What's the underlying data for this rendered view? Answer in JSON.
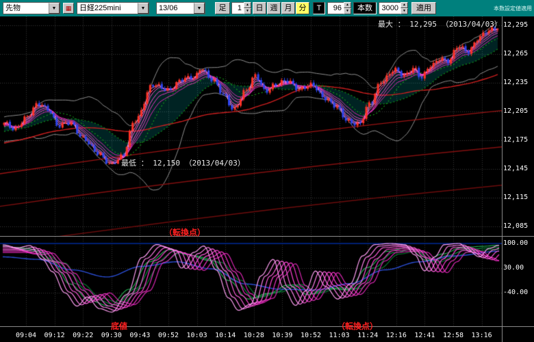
{
  "toolbar": {
    "category_value": "先物",
    "symbol_value": "日経225mini",
    "contract_value": "13/06",
    "bar_label": "足",
    "minute_value": "1",
    "period_buttons": [
      {
        "label": "日",
        "selected": false
      },
      {
        "label": "週",
        "selected": false
      },
      {
        "label": "月",
        "selected": false
      },
      {
        "label": "分",
        "selected": true
      }
    ],
    "tick_label": "T",
    "bars_value": "96",
    "count_label": "本数",
    "count_value": "3000",
    "apply_label": "適用",
    "corner_note": "本数設定値適用"
  },
  "annotations": {
    "max_label": "最大 ： 12,295 （2013/04/03）",
    "min_label": "最低 ： 12,150 （2013/04/03）",
    "turn_top": "（転換点）",
    "bottom": "底値",
    "turn_bottom": "（転換点）"
  },
  "chart_data": {
    "type": "candlestick",
    "symbol": "日経225mini",
    "contract_month": "13/06",
    "max_price": 12295,
    "min_price": 12150,
    "price_axis": {
      "labels": [
        "12,295",
        "12,265",
        "12,235",
        "12,205",
        "12,175",
        "12,145",
        "12,115",
        "12,085"
      ],
      "max": 12295,
      "min": 12085,
      "step": 30
    },
    "time_labels": [
      "09:04",
      "09:12",
      "09:22",
      "09:30",
      "09:43",
      "09:52",
      "10:03",
      "10:14",
      "10:28",
      "10:39",
      "10:52",
      "11:03",
      "11:24",
      "12:16",
      "12:41",
      "12:58",
      "13:16"
    ],
    "price_anchors": [
      [
        0,
        12192
      ],
      [
        0.02,
        12186
      ],
      [
        0.045,
        12200
      ],
      [
        0.07,
        12212
      ],
      [
        0.09,
        12208
      ],
      [
        0.11,
        12190
      ],
      [
        0.135,
        12192
      ],
      [
        0.16,
        12178
      ],
      [
        0.19,
        12160
      ],
      [
        0.215,
        12150
      ],
      [
        0.24,
        12158
      ],
      [
        0.265,
        12196
      ],
      [
        0.3,
        12232
      ],
      [
        0.33,
        12228
      ],
      [
        0.36,
        12238
      ],
      [
        0.385,
        12240
      ],
      [
        0.4,
        12252
      ],
      [
        0.42,
        12238
      ],
      [
        0.445,
        12222
      ],
      [
        0.465,
        12208
      ],
      [
        0.49,
        12226
      ],
      [
        0.51,
        12243
      ],
      [
        0.53,
        12227
      ],
      [
        0.55,
        12232
      ],
      [
        0.575,
        12238
      ],
      [
        0.6,
        12228
      ],
      [
        0.625,
        12232
      ],
      [
        0.65,
        12220
      ],
      [
        0.67,
        12210
      ],
      [
        0.695,
        12196
      ],
      [
        0.72,
        12192
      ],
      [
        0.74,
        12212
      ],
      [
        0.765,
        12238
      ],
      [
        0.79,
        12248
      ],
      [
        0.81,
        12242
      ],
      [
        0.83,
        12252
      ],
      [
        0.845,
        12240
      ],
      [
        0.865,
        12252
      ],
      [
        0.885,
        12262
      ],
      [
        0.9,
        12258
      ],
      [
        0.92,
        12272
      ],
      [
        0.94,
        12268
      ],
      [
        0.96,
        12282
      ],
      [
        0.98,
        12288
      ],
      [
        1,
        12293
      ]
    ],
    "trend_lines": [
      {
        "start": 12140,
        "end": 12206
      },
      {
        "start": 12106,
        "end": 12168
      },
      {
        "start": 12066,
        "end": 12128
      }
    ],
    "oscillator": {
      "grid_values": [
        100,
        30,
        -40
      ],
      "grid_labels": [
        "100.00",
        "30.00",
        "-40.00"
      ],
      "series": [
        {
          "name": "rci-short",
          "anchors": [
            [
              0,
              96
            ],
            [
              0.03,
              88
            ],
            [
              0.055,
              94
            ],
            [
              0.08,
              55
            ],
            [
              0.1,
              20
            ],
            [
              0.125,
              -40
            ],
            [
              0.15,
              -78
            ],
            [
              0.17,
              -52
            ],
            [
              0.195,
              -85
            ],
            [
              0.22,
              -95
            ],
            [
              0.25,
              -45
            ],
            [
              0.28,
              60
            ],
            [
              0.31,
              97
            ],
            [
              0.34,
              85
            ],
            [
              0.36,
              30
            ],
            [
              0.385,
              75
            ],
            [
              0.405,
              93
            ],
            [
              0.43,
              25
            ],
            [
              0.455,
              -55
            ],
            [
              0.475,
              -90
            ],
            [
              0.5,
              -72
            ],
            [
              0.52,
              8
            ],
            [
              0.545,
              55
            ],
            [
              0.565,
              -25
            ],
            [
              0.59,
              -76
            ],
            [
              0.61,
              -35
            ],
            [
              0.63,
              22
            ],
            [
              0.65,
              -22
            ],
            [
              0.675,
              -58
            ],
            [
              0.7,
              -15
            ],
            [
              0.725,
              65
            ],
            [
              0.75,
              97
            ],
            [
              0.78,
              100
            ],
            [
              0.81,
              97
            ],
            [
              0.83,
              68
            ],
            [
              0.85,
              22
            ],
            [
              0.87,
              62
            ],
            [
              0.89,
              97
            ],
            [
              0.92,
              100
            ],
            [
              0.94,
              78
            ],
            [
              0.96,
              62
            ],
            [
              0.98,
              86
            ],
            [
              1,
              95
            ]
          ]
        },
        {
          "name": "rci-mid",
          "anchors": [
            [
              0,
              92
            ],
            [
              0.05,
              86
            ],
            [
              0.1,
              50
            ],
            [
              0.135,
              -15
            ],
            [
              0.175,
              -62
            ],
            [
              0.215,
              -78
            ],
            [
              0.255,
              -30
            ],
            [
              0.295,
              48
            ],
            [
              0.335,
              82
            ],
            [
              0.375,
              68
            ],
            [
              0.415,
              52
            ],
            [
              0.455,
              -5
            ],
            [
              0.495,
              -58
            ],
            [
              0.535,
              -42
            ],
            [
              0.575,
              -18
            ],
            [
              0.615,
              -45
            ],
            [
              0.655,
              -28
            ],
            [
              0.695,
              -32
            ],
            [
              0.735,
              32
            ],
            [
              0.775,
              78
            ],
            [
              0.815,
              88
            ],
            [
              0.855,
              52
            ],
            [
              0.885,
              70
            ],
            [
              0.925,
              88
            ],
            [
              0.965,
              92
            ],
            [
              1,
              95
            ]
          ]
        },
        {
          "name": "rci-long",
          "anchors": [
            [
              0,
              62
            ],
            [
              0.07,
              55
            ],
            [
              0.14,
              25
            ],
            [
              0.21,
              5
            ],
            [
              0.28,
              35
            ],
            [
              0.35,
              48
            ],
            [
              0.42,
              28
            ],
            [
              0.49,
              -15
            ],
            [
              0.56,
              -30
            ],
            [
              0.63,
              -32
            ],
            [
              0.7,
              -14
            ],
            [
              0.77,
              25
            ],
            [
              0.84,
              48
            ],
            [
              0.91,
              65
            ],
            [
              1,
              78
            ]
          ]
        }
      ]
    },
    "colors": {
      "up": "#ff3226",
      "down": "#2e44ee",
      "grid": "#3a3a3a",
      "band": "#909090",
      "cyan_fill": "rgba(0,220,220,0.16)",
      "red_ma": "#cf1f1f",
      "trend": [
        "#9c1414",
        "#841010",
        "#6e0d0d"
      ],
      "green_ma": "#19a519",
      "green_ma2": "#0d7d18",
      "ribbon": [
        "#ffa2f2",
        "#ff86ea",
        "#ff6ae2",
        "#ff4ed6",
        "#f03ac6",
        "#d82ab2"
      ],
      "osc_magenta": [
        "#ff9ef2",
        "#ff7fe9",
        "#ff5fdf",
        "#ff41d4",
        "#ef32c4",
        "#d926b2"
      ],
      "osc_green": [
        "#22b052",
        "#0e9040",
        "#077a32"
      ],
      "osc_blue": "#2b4fd8",
      "osc_hundred_line": "#002a99",
      "accent_teal": "#00807d"
    }
  }
}
